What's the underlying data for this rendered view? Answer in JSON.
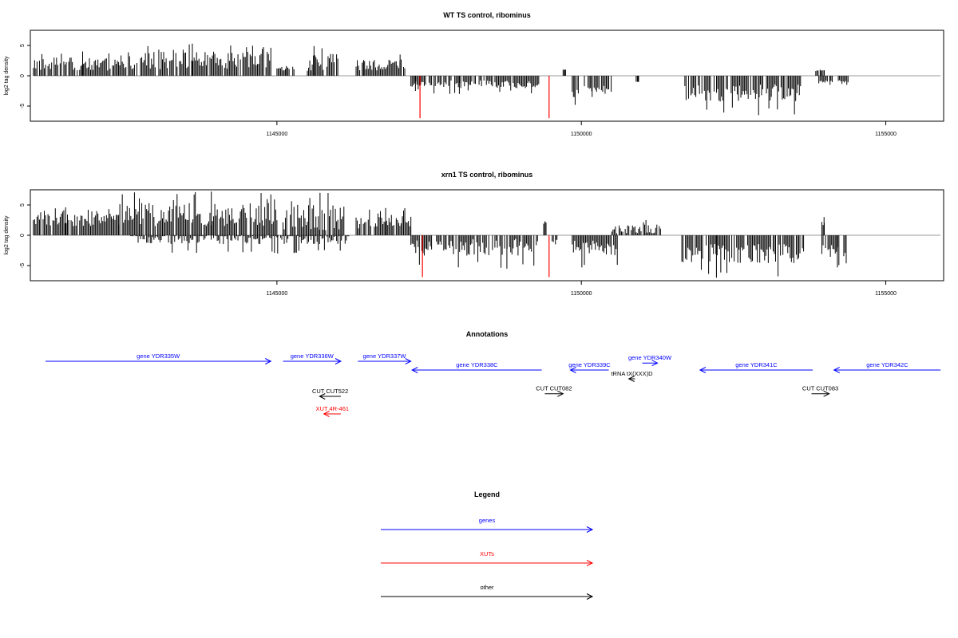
{
  "colors": {
    "positive": "#000000",
    "negative": "#000000",
    "highlight": "#ff0000",
    "baseline": "#999999",
    "gene": "#0000ff",
    "xut": "#ff0000",
    "other": "#000000"
  },
  "chart_data": [
    {
      "type": "bar",
      "title": "WT TS control, ribominus",
      "ylabel": "log2 tag density",
      "xlim": [
        1140950,
        1155950
      ],
      "ylim": [
        -7.5,
        7.5
      ],
      "xticks": [
        1145000,
        1150000,
        1155000
      ],
      "yticks": [
        -5,
        0,
        5
      ],
      "grid": false,
      "positive_strand": [
        {
          "range": [
            1141000,
            1142400
          ],
          "mean": 1.6,
          "max": 4.0
        },
        {
          "range": [
            1142400,
            1144900
          ],
          "mean": 2.1,
          "max": 5.3
        },
        {
          "range": [
            1145000,
            1145300
          ],
          "mean": 1.0,
          "max": 1.6
        },
        {
          "range": [
            1145500,
            1146000
          ],
          "mean": 1.8,
          "max": 4.9
        },
        {
          "range": [
            1146300,
            1146800
          ],
          "mean": 1.3,
          "max": 2.6
        },
        {
          "range": [
            1146800,
            1147100
          ],
          "mean": 1.7,
          "max": 3.5
        },
        {
          "range": [
            1149700,
            1149750
          ],
          "mean": 1.0,
          "max": 1.0
        },
        {
          "range": [
            1153850,
            1154000
          ],
          "mean": 0.8,
          "max": 1.0
        }
      ],
      "negative_strand": [
        {
          "range": [
            1147200,
            1147450
          ],
          "mean": -1.5,
          "max": -2.5
        },
        {
          "range": [
            1147500,
            1149300
          ],
          "mean": -1.6,
          "max": -3.0
        },
        {
          "range": [
            1149850,
            1149950
          ],
          "mean": -3.0,
          "max": -4.8
        },
        {
          "range": [
            1150050,
            1150500
          ],
          "mean": -2.3,
          "max": -3.5
        },
        {
          "range": [
            1150900,
            1150950
          ],
          "mean": -1.0,
          "max": -1.0
        },
        {
          "range": [
            1151700,
            1153600
          ],
          "mean": -3.3,
          "max": -6.5
        },
        {
          "range": [
            1153900,
            1154400
          ],
          "mean": -1.0,
          "max": -1.5
        }
      ],
      "highlights": [
        {
          "x": 1147350,
          "value": -7.0
        },
        {
          "x": 1149470,
          "value": -7.0
        }
      ]
    },
    {
      "type": "bar",
      "title": "xrn1 TS control, ribominus",
      "ylabel": "log2 tag density",
      "xlim": [
        1140950,
        1155950
      ],
      "ylim": [
        -7.5,
        7.5
      ],
      "xticks": [
        1145000,
        1150000,
        1155000
      ],
      "yticks": [
        -5,
        0,
        5
      ],
      "grid": false,
      "positive_strand": [
        {
          "range": [
            1141000,
            1142400
          ],
          "mean": 2.2,
          "max": 4.6
        },
        {
          "range": [
            1142400,
            1145000
          ],
          "mean": 2.8,
          "max": 7.2
        },
        {
          "range": [
            1145100,
            1146100
          ],
          "mean": 2.3,
          "max": 7.0
        },
        {
          "range": [
            1146300,
            1147200
          ],
          "mean": 1.8,
          "max": 4.5
        },
        {
          "range": [
            1149380,
            1149420
          ],
          "mean": 2.0,
          "max": 2.3
        },
        {
          "range": [
            1150500,
            1151300
          ],
          "mean": 0.8,
          "max": 2.5
        },
        {
          "range": [
            1153950,
            1154000
          ],
          "mean": 2.0,
          "max": 3.0
        }
      ],
      "negative_strand": [
        {
          "range": [
            1142600,
            1146200
          ],
          "mean": -0.8,
          "max": -3.0
        },
        {
          "range": [
            1147200,
            1149300
          ],
          "mean": -2.4,
          "max": -5.5
        },
        {
          "range": [
            1149500,
            1149600
          ],
          "mean": -1.0,
          "max": -1.5
        },
        {
          "range": [
            1149850,
            1150600
          ],
          "mean": -2.5,
          "max": -5.3
        },
        {
          "range": [
            1151650,
            1153650
          ],
          "mean": -3.5,
          "max": -7.0
        },
        {
          "range": [
            1153950,
            1154350
          ],
          "mean": -2.8,
          "max": -5.3
        }
      ],
      "highlights": [
        {
          "x": 1147390,
          "value": -6.9
        },
        {
          "x": 1149470,
          "value": -6.9
        }
      ]
    }
  ],
  "annotations": {
    "title": "Annotations",
    "xlim": [
      1140950,
      1155950
    ],
    "features": [
      {
        "label": "gene YDR335W",
        "kind": "gene",
        "strand": "+",
        "start": 1141200,
        "end": 1144900,
        "row": 0
      },
      {
        "label": "gene YDR336W",
        "kind": "gene",
        "strand": "+",
        "start": 1145100,
        "end": 1146050,
        "row": 0
      },
      {
        "label": "gene YDR337W",
        "kind": "gene",
        "strand": "+",
        "start": 1146330,
        "end": 1147200,
        "row": 0
      },
      {
        "label": "gene YDR338C",
        "kind": "gene",
        "strand": "-",
        "start": 1147220,
        "end": 1149350,
        "row": 1
      },
      {
        "label": "gene YDR339C",
        "kind": "gene",
        "strand": "-",
        "start": 1149820,
        "end": 1150450,
        "row": 1
      },
      {
        "label": "gene YDR340W",
        "kind": "gene",
        "strand": "+",
        "start": 1151000,
        "end": 1151250,
        "row": 0.2
      },
      {
        "label": "gene YDR341C",
        "kind": "gene",
        "strand": "-",
        "start": 1151950,
        "end": 1153800,
        "row": 1
      },
      {
        "label": "gene YDR342C",
        "kind": "gene",
        "strand": "-",
        "start": 1154150,
        "end": 1155900,
        "row": 1
      },
      {
        "label": "tRNA tX(XXX)D",
        "kind": "other",
        "strand": "-",
        "start": 1150780,
        "end": 1150880,
        "row": 2
      },
      {
        "label": "CUT CUT522",
        "kind": "other",
        "strand": "-",
        "start": 1145700,
        "end": 1146050,
        "row": 4
      },
      {
        "label": "CUT CUT082",
        "kind": "other",
        "strand": "+",
        "start": 1149400,
        "end": 1149700,
        "row": 3.7
      },
      {
        "label": "CUT CUT083",
        "kind": "other",
        "strand": "+",
        "start": 1153780,
        "end": 1154070,
        "row": 3.7
      },
      {
        "label": "XUT 4R-461",
        "kind": "xut",
        "strand": "-",
        "start": 1145770,
        "end": 1146050,
        "row": 6
      }
    ]
  },
  "legend": {
    "title": "Legend",
    "items": [
      {
        "label": "genes",
        "kind": "gene"
      },
      {
        "label": "XUTs",
        "kind": "xut"
      },
      {
        "label": "other",
        "kind": "other"
      }
    ]
  }
}
